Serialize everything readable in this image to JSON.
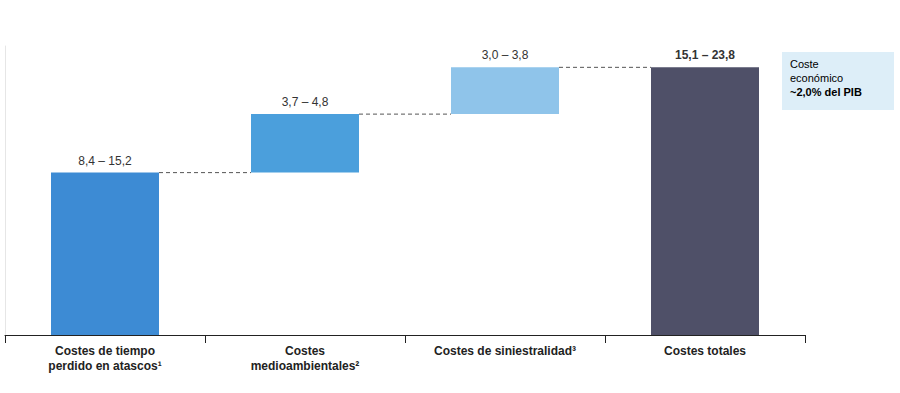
{
  "chart_data": {
    "type": "waterfall",
    "categories": [
      "Costes de tiempo\nperdido en atascos¹",
      "Costes\nmedioambientales²",
      "Costes de siniestralidad³",
      "Costes totales"
    ],
    "values": [
      11.8,
      4.25,
      3.4,
      19.45
    ],
    "value_labels": [
      "8,4 – 15,2",
      "3,7 – 4,8",
      "3,0 – 3,8",
      "15,1 – 23,8"
    ],
    "is_total": [
      false,
      false,
      false,
      true
    ],
    "colors": [
      "#3d8bd4",
      "#4b9fdc",
      "#8fc4ea",
      "#4f5068"
    ],
    "ylim": [
      0,
      21
    ],
    "yticks": [],
    "tick_labels": "x",
    "data_labels": true,
    "grid": false,
    "annotation": {
      "text": "Coste\neconómico",
      "highlight": "~2,0% del PIB"
    }
  }
}
